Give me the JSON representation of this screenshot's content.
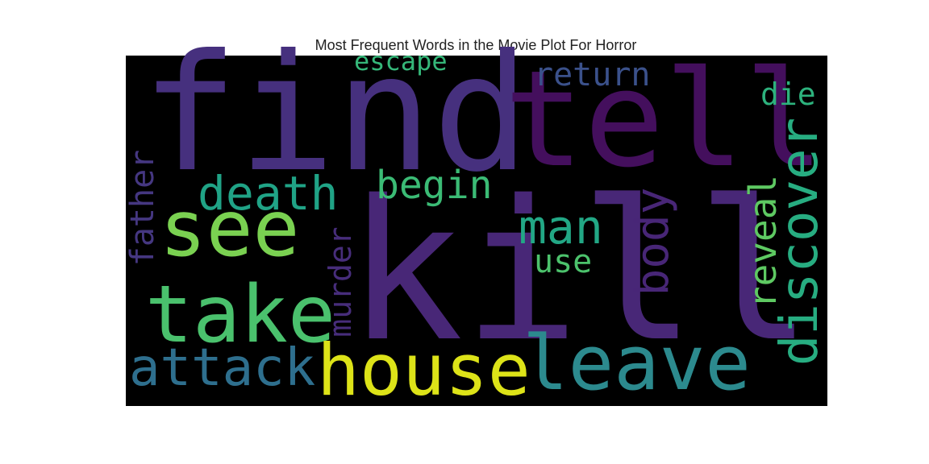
{
  "chart_data": {
    "type": "wordcloud",
    "title": "Most Frequent Words in the Movie Plot For Horror",
    "background": "#000000",
    "words": [
      {
        "text": "kill",
        "color": "#482777"
      },
      {
        "text": "find",
        "color": "#46307e"
      },
      {
        "text": "tell",
        "color": "#440f5d"
      },
      {
        "text": "see",
        "color": "#7ad151"
      },
      {
        "text": "take",
        "color": "#4ac16d"
      },
      {
        "text": "house",
        "color": "#dde318"
      },
      {
        "text": "leave",
        "color": "#2c8a8e"
      },
      {
        "text": "attack",
        "color": "#2e6f8e"
      },
      {
        "text": "death",
        "color": "#20a386"
      },
      {
        "text": "man",
        "color": "#22a785"
      },
      {
        "text": "begin",
        "color": "#3bbb75"
      },
      {
        "text": "discover",
        "color": "#27ad81"
      },
      {
        "text": "body",
        "color": "#482677"
      },
      {
        "text": "reveal",
        "color": "#5ec962"
      },
      {
        "text": "return",
        "color": "#3b518b"
      },
      {
        "text": "escape",
        "color": "#35b779"
      },
      {
        "text": "die",
        "color": "#2db27d"
      },
      {
        "text": "father",
        "color": "#453781"
      },
      {
        "text": "murder",
        "color": "#472d7b"
      },
      {
        "text": "use",
        "color": "#4cc26c"
      }
    ]
  }
}
